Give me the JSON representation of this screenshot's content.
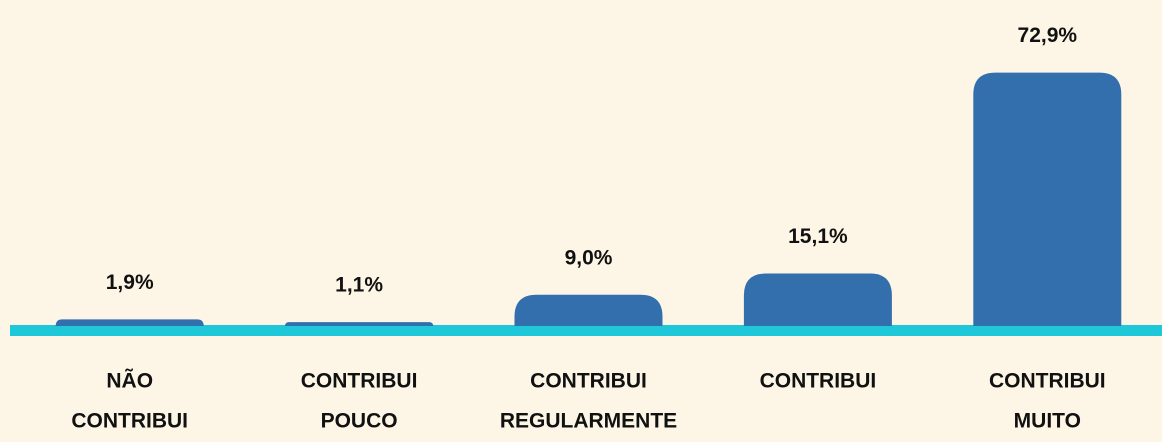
{
  "chart_data": {
    "type": "bar",
    "categories": [
      [
        "NÃO",
        "CONTRIBUI"
      ],
      [
        "CONTRIBUI",
        "POUCO"
      ],
      [
        "CONTRIBUI",
        "REGULARMENTE"
      ],
      [
        "CONTRIBUI"
      ],
      [
        "CONTRIBUI",
        "MUITO"
      ]
    ],
    "values": [
      1.9,
      1.1,
      9.0,
      15.1,
      72.9
    ],
    "value_labels": [
      "1,9%",
      "1,1%",
      "9,0%",
      "15,1%",
      "72,9%"
    ],
    "color": "#336fad",
    "ylim": [
      0,
      80
    ]
  }
}
